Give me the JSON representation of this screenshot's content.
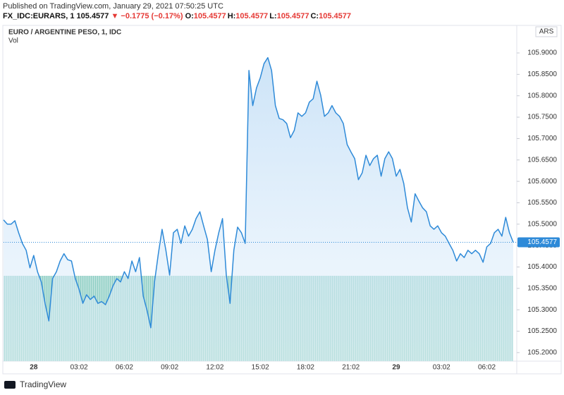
{
  "header": {
    "published": "Published on TradingView.com, January 29, 2021 07:50:25 UTC",
    "symbol": "FX_IDC:EURARS, 1",
    "price": "105.4577",
    "change": "▼ −0.1775 (−0.17%)",
    "ohlc": [
      {
        "label": "O:",
        "value": "105.4577"
      },
      {
        "label": "H:",
        "value": "105.4577"
      },
      {
        "label": "L:",
        "value": "105.4577"
      },
      {
        "label": "C:",
        "value": "105.4577"
      }
    ]
  },
  "footer": {
    "brand": "TradingView"
  },
  "chart_data": {
    "type": "area",
    "title": "EURO / ARGENTINE PESO, 1, IDC",
    "volume_label": "Vol",
    "unit": "ARS",
    "last_label": "105.4577",
    "color": "#2e8ad8",
    "grid": false,
    "categories": [
      null,
      null,
      null,
      null,
      null,
      null,
      null,
      null,
      "28",
      null,
      null,
      null,
      null,
      null,
      null,
      null,
      null,
      null,
      null,
      null,
      "03:02",
      null,
      null,
      null,
      null,
      null,
      null,
      null,
      null,
      null,
      null,
      null,
      "06:02",
      null,
      null,
      null,
      null,
      null,
      null,
      null,
      null,
      null,
      null,
      null,
      "09:02",
      null,
      null,
      null,
      null,
      null,
      null,
      null,
      null,
      null,
      null,
      null,
      "12:02",
      null,
      null,
      null,
      null,
      null,
      null,
      null,
      null,
      null,
      null,
      null,
      "15:02",
      null,
      null,
      null,
      null,
      null,
      null,
      null,
      null,
      null,
      null,
      null,
      "18:02",
      null,
      null,
      null,
      null,
      null,
      null,
      null,
      null,
      null,
      null,
      null,
      "21:02",
      null,
      null,
      null,
      null,
      null,
      null,
      null,
      null,
      null,
      null,
      null,
      "29",
      null,
      null,
      null,
      null,
      null,
      null,
      null,
      null,
      null,
      null,
      null,
      "03:02",
      null,
      null,
      null,
      null,
      null,
      null,
      null,
      null,
      null,
      null,
      null,
      "06:02",
      null,
      null,
      null,
      null,
      null,
      null,
      null
    ],
    "values": [
      105.51,
      105.5,
      105.5,
      105.508,
      105.48,
      105.455,
      105.439,
      105.398,
      105.427,
      105.389,
      105.365,
      105.315,
      105.274,
      105.373,
      105.389,
      105.414,
      105.431,
      105.417,
      105.414,
      105.373,
      105.348,
      105.315,
      105.335,
      105.324,
      105.332,
      105.315,
      105.319,
      105.312,
      105.332,
      105.356,
      105.373,
      105.365,
      105.389,
      105.373,
      105.414,
      105.389,
      105.422,
      105.332,
      105.299,
      105.258,
      105.365,
      105.431,
      105.488,
      105.439,
      105.381,
      105.48,
      105.488,
      105.455,
      105.496,
      105.472,
      105.488,
      105.513,
      105.529,
      105.496,
      105.464,
      105.389,
      105.439,
      105.48,
      105.513,
      105.381,
      105.315,
      105.439,
      105.493,
      105.48,
      105.455,
      105.859,
      105.777,
      105.818,
      105.842,
      105.875,
      105.889,
      105.859,
      105.777,
      105.747,
      105.744,
      105.735,
      105.702,
      105.719,
      105.76,
      105.752,
      105.76,
      105.785,
      105.793,
      105.834,
      105.801,
      105.752,
      105.76,
      105.777,
      105.76,
      105.752,
      105.735,
      105.686,
      105.669,
      105.653,
      105.604,
      105.62,
      105.661,
      105.637,
      105.653,
      105.661,
      105.612,
      105.653,
      105.669,
      105.653,
      105.612,
      105.628,
      105.595,
      105.538,
      105.505,
      105.571,
      105.554,
      105.538,
      105.529,
      105.496,
      105.488,
      105.496,
      105.48,
      105.472,
      105.455,
      105.439,
      105.414,
      105.431,
      105.422,
      105.439,
      105.431,
      105.439,
      105.431,
      105.411,
      105.447,
      105.455,
      105.48,
      105.488,
      105.472,
      105.516,
      105.48,
      105.4577
    ],
    "ylim": [
      105.18,
      105.9627
    ],
    "yticks": [
      {
        "value": 105.2,
        "label": "105.2000"
      },
      {
        "value": 105.25,
        "label": "105.2500"
      },
      {
        "value": 105.3,
        "label": "105.3000"
      },
      {
        "value": 105.35,
        "label": "105.3500"
      },
      {
        "value": 105.4,
        "label": "105.4000"
      },
      {
        "value": 105.45,
        "label": "105.4500"
      },
      {
        "value": 105.5,
        "label": "105.5000"
      },
      {
        "value": 105.55,
        "label": "105.5500"
      },
      {
        "value": 105.6,
        "label": "105.6000"
      },
      {
        "value": 105.65,
        "label": "105.6500"
      },
      {
        "value": 105.7,
        "label": "105.7000"
      },
      {
        "value": 105.75,
        "label": "105.7500"
      },
      {
        "value": 105.8,
        "label": "105.8000"
      },
      {
        "value": 105.85,
        "label": "105.8500"
      },
      {
        "value": 105.9,
        "label": "105.9000"
      }
    ]
  }
}
